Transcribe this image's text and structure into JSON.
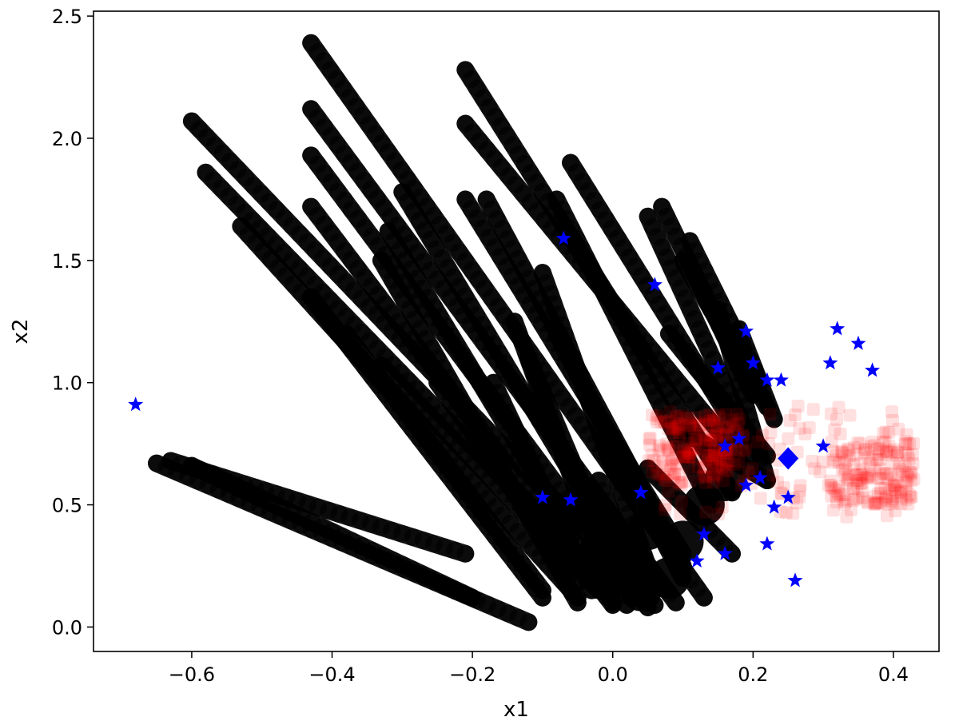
{
  "chart_data": {
    "type": "scatter",
    "title": "",
    "xlabel": "x1",
    "ylabel": "x2",
    "xlim": [
      -0.74,
      0.465
    ],
    "ylim": [
      -0.1,
      2.52
    ],
    "xticks": [
      -0.6,
      -0.4,
      -0.2,
      0.0,
      0.2,
      0.4
    ],
    "xtick_labels": [
      "−0.6",
      "−0.4",
      "−0.2",
      "0.0",
      "0.2",
      "0.4"
    ],
    "yticks": [
      0.0,
      0.5,
      1.0,
      1.5,
      2.0,
      2.5
    ],
    "ytick_labels": [
      "0.0",
      "0.5",
      "1.0",
      "1.5",
      "2.0",
      "2.5"
    ],
    "grid": false,
    "legend": "none",
    "colors": {
      "trajectories": "#000000",
      "cluster": "#ff0000",
      "stars": "#0000ff",
      "diamond": "#0000ff"
    },
    "series": [
      {
        "kind": "trajectory-streaks",
        "marker": "circle",
        "color": "#000000",
        "segments": [
          {
            "from": [
              -0.43,
              2.39
            ],
            "to": [
              0.13,
              0.12
            ]
          },
          {
            "from": [
              -0.21,
              2.28
            ],
            "to": [
              0.17,
              0.55
            ]
          },
          {
            "from": [
              -0.43,
              2.12
            ],
            "to": [
              0.09,
              0.1
            ]
          },
          {
            "from": [
              -0.21,
              2.06
            ],
            "to": [
              0.18,
              0.7
            ]
          },
          {
            "from": [
              -0.6,
              2.07
            ],
            "to": [
              0.06,
              0.09
            ]
          },
          {
            "from": [
              -0.43,
              1.93
            ],
            "to": [
              0.05,
              0.08
            ]
          },
          {
            "from": [
              -0.58,
              1.86
            ],
            "to": [
              0.02,
              0.09
            ]
          },
          {
            "from": [
              -0.43,
              1.72
            ],
            "to": [
              0.0,
              0.09
            ]
          },
          {
            "from": [
              -0.3,
              1.78
            ],
            "to": [
              0.05,
              0.11
            ]
          },
          {
            "from": [
              -0.06,
              1.9
            ],
            "to": [
              0.2,
              0.7
            ]
          },
          {
            "from": [
              -0.08,
              1.75
            ],
            "to": [
              0.14,
              0.5
            ]
          },
          {
            "from": [
              -0.21,
              1.75
            ],
            "to": [
              0.1,
              0.3
            ]
          },
          {
            "from": [
              -0.18,
              1.75
            ],
            "to": [
              0.1,
              0.25
            ]
          },
          {
            "from": [
              -0.32,
              1.62
            ],
            "to": [
              0.0,
              0.1
            ]
          },
          {
            "from": [
              -0.33,
              1.5
            ],
            "to": [
              -0.05,
              0.1
            ]
          },
          {
            "from": [
              -0.53,
              1.64
            ],
            "to": [
              -0.05,
              0.12
            ]
          },
          {
            "from": [
              -0.43,
              1.35
            ],
            "to": [
              -0.1,
              0.12
            ]
          },
          {
            "from": [
              -0.38,
              1.2
            ],
            "to": [
              -0.1,
              0.15
            ]
          },
          {
            "from": [
              -0.33,
              1.07
            ],
            "to": [
              -0.02,
              0.15
            ]
          },
          {
            "from": [
              -0.25,
              1.0
            ],
            "to": [
              -0.05,
              0.18
            ]
          },
          {
            "from": [
              -0.17,
              1.0
            ],
            "to": [
              -0.03,
              0.15
            ]
          },
          {
            "from": [
              0.07,
              1.72
            ],
            "to": [
              0.2,
              0.95
            ]
          },
          {
            "from": [
              0.11,
              1.58
            ],
            "to": [
              0.21,
              1.0
            ]
          },
          {
            "from": [
              0.05,
              1.68
            ],
            "to": [
              0.19,
              0.8
            ]
          },
          {
            "from": [
              0.1,
              1.5
            ],
            "to": [
              0.22,
              0.9
            ]
          },
          {
            "from": [
              -0.1,
              1.45
            ],
            "to": [
              0.05,
              0.25
            ]
          },
          {
            "from": [
              -0.14,
              1.25
            ],
            "to": [
              0.0,
              0.15
            ]
          },
          {
            "from": [
              -0.12,
              1.1
            ],
            "to": [
              0.02,
              0.15
            ]
          },
          {
            "from": [
              -0.08,
              1.2
            ],
            "to": [
              0.1,
              0.2
            ]
          },
          {
            "from": [
              0.08,
              1.2
            ],
            "to": [
              0.22,
              0.7
            ]
          },
          {
            "from": [
              0.15,
              1.3
            ],
            "to": [
              0.22,
              0.6
            ]
          },
          {
            "from": [
              0.18,
              1.22
            ],
            "to": [
              0.23,
              0.85
            ]
          },
          {
            "from": [
              -0.65,
              0.67
            ],
            "to": [
              -0.12,
              0.02
            ]
          },
          {
            "from": [
              -0.63,
              0.68
            ],
            "to": [
              -0.21,
              0.3
            ]
          },
          {
            "from": [
              -0.6,
              0.66
            ],
            "to": [
              -0.2,
              0.12
            ]
          },
          {
            "from": [
              0.05,
              0.65
            ],
            "to": [
              0.17,
              0.3
            ]
          },
          {
            "from": [
              -0.02,
              0.6
            ],
            "to": [
              0.05,
              0.1
            ]
          },
          {
            "from": [
              0.1,
              0.8
            ],
            "to": [
              0.22,
              0.6
            ]
          }
        ]
      },
      {
        "kind": "point-cloud",
        "marker": "square",
        "color": "#ff0000",
        "center": [
          0.25,
          0.68
        ],
        "x_range": [
          0.07,
          0.43
        ],
        "y_range": [
          0.45,
          0.92
        ],
        "dense_regions": [
          [
            0.12,
            0.73
          ],
          [
            0.37,
            0.63
          ]
        ]
      },
      {
        "kind": "points",
        "marker": "star",
        "color": "#0000ff",
        "points": [
          [
            -0.68,
            0.91
          ],
          [
            -0.07,
            1.59
          ],
          [
            0.06,
            1.4
          ],
          [
            0.19,
            1.21
          ],
          [
            0.32,
            1.22
          ],
          [
            0.35,
            1.16
          ],
          [
            0.37,
            1.05
          ],
          [
            0.31,
            1.08
          ],
          [
            0.2,
            1.08
          ],
          [
            0.15,
            1.06
          ],
          [
            0.22,
            1.01
          ],
          [
            0.24,
            1.01
          ],
          [
            0.16,
            0.74
          ],
          [
            0.18,
            0.77
          ],
          [
            0.3,
            0.74
          ],
          [
            0.19,
            0.58
          ],
          [
            0.21,
            0.61
          ],
          [
            0.25,
            0.53
          ],
          [
            0.23,
            0.49
          ],
          [
            -0.1,
            0.53
          ],
          [
            -0.06,
            0.52
          ],
          [
            0.04,
            0.55
          ],
          [
            0.13,
            0.38
          ],
          [
            0.12,
            0.27
          ],
          [
            0.16,
            0.3
          ],
          [
            0.22,
            0.34
          ],
          [
            0.26,
            0.19
          ]
        ]
      },
      {
        "kind": "point",
        "marker": "diamond",
        "color": "#0000ff",
        "point": [
          0.25,
          0.69
        ]
      }
    ]
  }
}
